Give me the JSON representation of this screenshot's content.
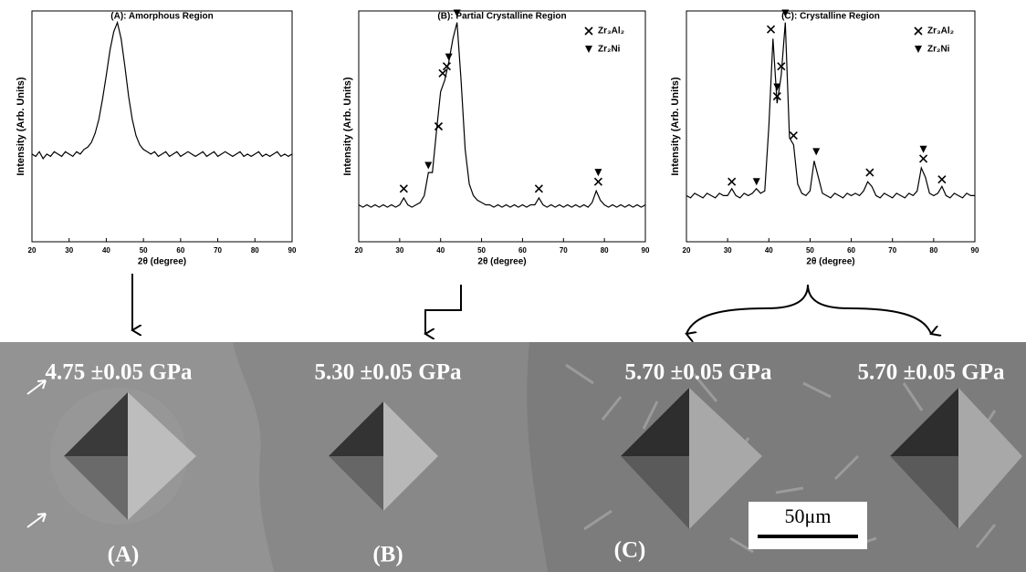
{
  "chart_data": [
    {
      "type": "line",
      "title": "(A): Amorphous Region",
      "xlabel": "2θ (degree)",
      "ylabel": "Intensity (Arb. Units)",
      "x": [
        20,
        21,
        22,
        23,
        24,
        25,
        26,
        27,
        28,
        29,
        30,
        31,
        32,
        33,
        34,
        35,
        36,
        37,
        38,
        39,
        40,
        41,
        42,
        43,
        44,
        45,
        46,
        47,
        48,
        49,
        50,
        51,
        52,
        53,
        54,
        55,
        56,
        57,
        58,
        59,
        60,
        61,
        62,
        63,
        64,
        65,
        66,
        67,
        68,
        69,
        70,
        71,
        72,
        73,
        74,
        75,
        76,
        77,
        78,
        79,
        80,
        81,
        82,
        83,
        84,
        85,
        86,
        87,
        88,
        89,
        90
      ],
      "series": [
        {
          "color": "#000000",
          "values": [
            38,
            37,
            39,
            36,
            38,
            37,
            39,
            38,
            37,
            39,
            38,
            37,
            39,
            38,
            40,
            41,
            43,
            47,
            53,
            62,
            72,
            83,
            91,
            95,
            88,
            76,
            63,
            53,
            46,
            42,
            40,
            39,
            38,
            39,
            37,
            38,
            39,
            37,
            38,
            39,
            37,
            38,
            39,
            38,
            37,
            38,
            39,
            37,
            38,
            39,
            37,
            38,
            39,
            38,
            37,
            38,
            39,
            37,
            38,
            37,
            38,
            39,
            37,
            38,
            37,
            38,
            39,
            37,
            38,
            37,
            38
          ]
        }
      ],
      "xlim": [
        20,
        90
      ],
      "xticks": [
        20,
        30,
        40,
        50,
        60,
        70,
        80,
        90
      ],
      "ylim": [
        0,
        100
      ],
      "markers": []
    },
    {
      "type": "line",
      "title": "(B): Partial Crystalline Region",
      "xlabel": "2θ (degree)",
      "ylabel": "Intensity (Arb. Units)",
      "x": [
        20,
        21,
        22,
        23,
        24,
        25,
        26,
        27,
        28,
        29,
        30,
        31,
        32,
        33,
        34,
        35,
        36,
        37,
        38,
        39,
        40,
        41,
        42,
        43,
        44,
        45,
        46,
        47,
        48,
        49,
        50,
        51,
        52,
        53,
        54,
        55,
        56,
        57,
        58,
        59,
        60,
        61,
        62,
        63,
        64,
        65,
        66,
        67,
        68,
        69,
        70,
        71,
        72,
        73,
        74,
        75,
        76,
        77,
        78,
        79,
        80,
        81,
        82,
        83,
        84,
        85,
        86,
        87,
        88,
        89,
        90
      ],
      "series": [
        {
          "color": "#000000",
          "values": [
            16,
            15,
            16,
            15,
            16,
            15,
            16,
            15,
            16,
            15,
            16,
            19,
            16,
            15,
            16,
            17,
            20,
            30,
            30,
            48,
            65,
            70,
            78,
            88,
            95,
            70,
            40,
            25,
            20,
            18,
            17,
            16,
            16,
            15,
            16,
            15,
            16,
            15,
            16,
            15,
            16,
            15,
            16,
            16,
            19,
            16,
            15,
            16,
            15,
            16,
            15,
            16,
            15,
            16,
            15,
            16,
            15,
            17,
            22,
            18,
            16,
            15,
            16,
            15,
            16,
            15,
            16,
            15,
            16,
            15,
            16
          ]
        }
      ],
      "xlim": [
        20,
        90
      ],
      "xticks": [
        20,
        30,
        40,
        50,
        60,
        70,
        80,
        90
      ],
      "ylim": [
        0,
        100
      ],
      "markers": [
        {
          "name": "Zr₃Al₂",
          "marker": "cross",
          "color": "#000000",
          "x": [
            31,
            39.5,
            40.5,
            41.5,
            64,
            78.5
          ],
          "y": [
            23,
            50,
            73,
            76,
            23,
            26
          ]
        },
        {
          "name": "Zr₂Ni",
          "marker": "triangle",
          "color": "#000000",
          "x": [
            37,
            42,
            44,
            78.5
          ],
          "y": [
            33,
            80,
            99,
            30
          ]
        }
      ]
    },
    {
      "type": "line",
      "title": "(C): Crystalline Region",
      "xlabel": "2θ (degree)",
      "ylabel": "Intensity (Arb. Units)",
      "x": [
        20,
        21,
        22,
        23,
        24,
        25,
        26,
        27,
        28,
        29,
        30,
        31,
        32,
        33,
        34,
        35,
        36,
        37,
        38,
        39,
        40,
        41,
        42,
        43,
        44,
        45,
        46,
        47,
        48,
        49,
        50,
        51,
        52,
        53,
        54,
        55,
        56,
        57,
        58,
        59,
        60,
        61,
        62,
        63,
        64,
        65,
        66,
        67,
        68,
        69,
        70,
        71,
        72,
        73,
        74,
        75,
        76,
        77,
        78,
        79,
        80,
        81,
        82,
        83,
        84,
        85,
        86,
        87,
        88,
        89,
        90
      ],
      "series": [
        {
          "color": "#000000",
          "values": [
            20,
            19,
            21,
            20,
            19,
            21,
            20,
            19,
            21,
            20,
            20,
            23,
            20,
            19,
            21,
            20,
            21,
            23,
            21,
            22,
            50,
            88,
            60,
            72,
            95,
            45,
            42,
            25,
            21,
            20,
            22,
            35,
            28,
            21,
            20,
            19,
            21,
            20,
            19,
            21,
            20,
            21,
            20,
            22,
            26,
            24,
            20,
            19,
            21,
            20,
            19,
            21,
            20,
            19,
            21,
            20,
            22,
            32,
            28,
            21,
            20,
            21,
            24,
            20,
            19,
            21,
            20,
            19,
            21,
            20,
            20
          ]
        }
      ],
      "xlim": [
        20,
        90
      ],
      "xticks": [
        20,
        30,
        40,
        50,
        60,
        70,
        80,
        90
      ],
      "ylim": [
        0,
        100
      ],
      "markers": [
        {
          "name": "Zr₃Al₂",
          "marker": "cross",
          "color": "#000000",
          "x": [
            31,
            40.5,
            42,
            43,
            46,
            64.5,
            77.5,
            82
          ],
          "y": [
            26,
            92,
            63,
            76,
            46,
            30,
            36,
            27
          ]
        },
        {
          "name": "Zr₂Ni",
          "marker": "triangle",
          "color": "#000000",
          "x": [
            37,
            42,
            44,
            51.5,
            77.5
          ],
          "y": [
            26,
            67,
            99,
            39,
            40
          ]
        }
      ]
    }
  ],
  "micrograph": {
    "hardness": [
      "4.75 ±0.05 GPa",
      "5.30 ±0.05 GPa",
      "5.70 ±0.05 GPa",
      "5.70 ±0.05 GPa"
    ],
    "regions": [
      "(A)",
      "(B)",
      "(C)"
    ],
    "scale_bar": "50μm"
  }
}
